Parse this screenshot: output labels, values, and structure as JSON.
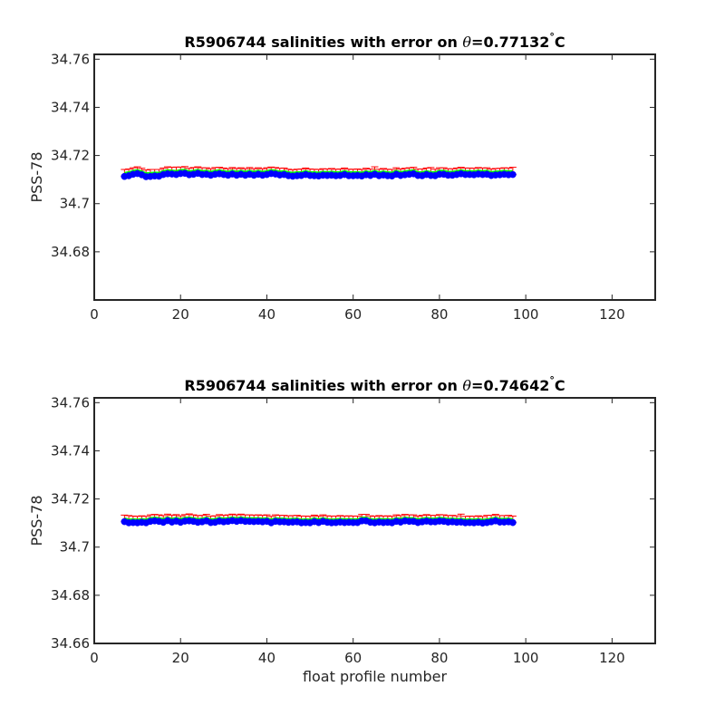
{
  "colors": {
    "background": "#ffffff",
    "axes": "#262626",
    "error_bar": "#ff0000",
    "uncorrected_line": "#00ff00",
    "corrected_points": "#0000ff"
  },
  "chart_data": [
    {
      "type": "scatter",
      "title_prefix": "R5906744 salinities with error on ",
      "title_theta": "θ",
      "title_suffix": "=0.77132",
      "title_degree": "°",
      "title_unit": "C",
      "xlabel": "",
      "ylabel": "PSS-78",
      "xlim": [
        0,
        130
      ],
      "ylim": [
        34.66,
        34.762
      ],
      "xticks": [
        0,
        20,
        40,
        60,
        80,
        100,
        120
      ],
      "xtick_labels": [
        "0",
        "20",
        "40",
        "60",
        "80",
        "100",
        "120"
      ],
      "yticks": [
        34.68,
        34.7,
        34.72,
        34.74,
        34.76
      ],
      "ytick_labels": [
        "34.68",
        "34.7",
        "34.72",
        "34.74",
        "34.76"
      ],
      "grid": false,
      "series": [
        {
          "x": [
            7,
            8,
            9,
            10,
            11,
            12,
            13,
            14,
            15,
            16,
            17,
            18,
            19,
            20,
            21,
            22,
            23,
            24,
            25,
            26,
            27,
            28,
            29,
            30,
            31,
            32,
            33,
            34,
            35,
            36,
            37,
            38,
            39,
            40,
            41,
            42,
            43,
            44,
            45,
            46,
            47,
            48,
            49,
            50,
            51,
            52,
            53,
            54,
            55,
            56,
            57,
            58,
            59,
            60,
            61,
            62,
            63,
            64,
            65,
            66,
            67,
            68,
            69,
            70,
            71,
            72,
            73,
            74,
            75,
            76,
            77,
            78,
            79,
            80,
            81,
            82,
            83,
            84,
            85,
            86,
            87,
            88,
            89,
            90,
            91,
            92,
            93,
            94,
            95,
            96,
            97
          ],
          "salinity": [
            34.7113,
            34.7116,
            34.7122,
            34.7125,
            34.712,
            34.7112,
            34.7113,
            34.7115,
            34.7114,
            34.7121,
            34.7124,
            34.7123,
            34.7121,
            34.7125,
            34.7126,
            34.712,
            34.7122,
            34.7126,
            34.7121,
            34.7122,
            34.7118,
            34.7122,
            34.7124,
            34.7121,
            34.7118,
            34.7123,
            34.7118,
            34.7122,
            34.7118,
            34.7122,
            34.7118,
            34.7122,
            34.7118,
            34.7121,
            34.7125,
            34.7123,
            34.7119,
            34.7121,
            34.7116,
            34.7114,
            34.7116,
            34.7117,
            34.7121,
            34.7117,
            34.7116,
            34.7115,
            34.7118,
            34.7117,
            34.7118,
            34.7116,
            34.7117,
            34.7121,
            34.7116,
            34.7116,
            34.7117,
            34.7115,
            34.712,
            34.7117,
            34.7122,
            34.7116,
            34.7119,
            34.7116,
            34.7115,
            34.7122,
            34.7117,
            34.712,
            34.7122,
            34.7124,
            34.7117,
            34.7116,
            34.7121,
            34.7117,
            34.7116,
            34.7122,
            34.7122,
            34.7118,
            34.7118,
            34.7121,
            34.7124,
            34.7121,
            34.7121,
            34.712,
            34.7123,
            34.7121,
            34.7122,
            34.7117,
            34.7119,
            34.712,
            34.7122,
            34.712,
            34.7121
          ],
          "uncorrected": [
            34.7128,
            34.7131,
            34.7137,
            34.714,
            34.7135,
            34.7127,
            34.7128,
            34.713,
            34.7129,
            34.7136,
            34.7139,
            34.7138,
            34.7136,
            34.714,
            34.7141,
            34.7135,
            34.7137,
            34.7141,
            34.7136,
            34.7137,
            34.7133,
            34.7137,
            34.7139,
            34.7136,
            34.7133,
            34.7138,
            34.7133,
            34.7137,
            34.7133,
            34.7137,
            34.7133,
            34.7137,
            34.7133,
            34.7136,
            34.714,
            34.7138,
            34.7134,
            34.7136,
            34.7131,
            34.7129,
            34.7131,
            34.7132,
            34.7136,
            34.7132,
            34.7131,
            34.713,
            34.7133,
            34.7132,
            34.7133,
            34.7131,
            34.7132,
            34.7136,
            34.7131,
            34.7131,
            34.7132,
            34.713,
            34.7135,
            34.7132,
            34.7137,
            34.7131,
            34.7134,
            34.7131,
            34.713,
            34.7137,
            34.7132,
            34.7135,
            34.7137,
            34.7139,
            34.7132,
            34.7131,
            34.7136,
            34.7132,
            34.7131,
            34.7137,
            34.7137,
            34.7133,
            34.7133,
            34.7136,
            34.7139,
            34.7136,
            34.7136,
            34.7135,
            34.7138,
            34.7136,
            34.7137,
            34.7132,
            34.7134,
            34.7135,
            34.7137,
            34.7135,
            34.7136
          ],
          "error": [
            0.0014,
            0.0013,
            0.0012,
            0.0013,
            0.0012,
            0.0013,
            0.0014,
            0.0012,
            0.0013,
            0.0012,
            0.0014,
            0.0013,
            0.0016,
            0.0012,
            0.0013,
            0.0012,
            0.0013,
            0.0012,
            0.0013,
            0.0012,
            0.0012,
            0.0013,
            0.0012,
            0.0012,
            0.0012,
            0.0012,
            0.0013,
            0.0012,
            0.0012,
            0.0013,
            0.0012,
            0.0012,
            0.0012,
            0.0013,
            0.0012,
            0.0012,
            0.0013,
            0.0012,
            0.0012,
            0.0012,
            0.0012,
            0.0012,
            0.0012,
            0.0012,
            0.0012,
            0.0012,
            0.0012,
            0.0012,
            0.0013,
            0.0012,
            0.0012,
            0.0012,
            0.0012,
            0.0012,
            0.0012,
            0.0012,
            0.0012,
            0.0012,
            0.0016,
            0.0012,
            0.0012,
            0.0012,
            0.0012,
            0.0012,
            0.0012,
            0.0012,
            0.0012,
            0.0012,
            0.0012,
            0.0013,
            0.0012,
            0.0018,
            0.0012,
            0.0012,
            0.0012,
            0.0012,
            0.0012,
            0.0012,
            0.0012,
            0.0012,
            0.0012,
            0.0012,
            0.0012,
            0.0012,
            0.0012,
            0.0012,
            0.0012,
            0.0012,
            0.0012,
            0.0013,
            0.0015
          ]
        }
      ]
    },
    {
      "type": "scatter",
      "title_prefix": "R5906744 salinities with error on ",
      "title_theta": "θ",
      "title_suffix": "=0.74642",
      "title_degree": "°",
      "title_unit": "C",
      "xlabel": "float profile number",
      "ylabel": "PSS-78",
      "xlim": [
        0,
        130
      ],
      "ylim": [
        34.66,
        34.762
      ],
      "xticks": [
        0,
        20,
        40,
        60,
        80,
        100,
        120
      ],
      "xtick_labels": [
        "0",
        "20",
        "40",
        "60",
        "80",
        "100",
        "120"
      ],
      "yticks": [
        34.66,
        34.68,
        34.7,
        34.72,
        34.74,
        34.76
      ],
      "ytick_labels": [
        "34.66",
        "34.68",
        "34.7",
        "34.72",
        "34.74",
        "34.76"
      ],
      "grid": false,
      "series": [
        {
          "x": [
            7,
            8,
            9,
            10,
            11,
            12,
            13,
            14,
            15,
            16,
            17,
            18,
            19,
            20,
            21,
            22,
            23,
            24,
            25,
            26,
            27,
            28,
            29,
            30,
            31,
            32,
            33,
            34,
            35,
            36,
            37,
            38,
            39,
            40,
            41,
            42,
            43,
            44,
            45,
            46,
            47,
            48,
            49,
            50,
            51,
            52,
            53,
            54,
            55,
            56,
            57,
            58,
            59,
            60,
            61,
            62,
            63,
            64,
            65,
            66,
            67,
            68,
            69,
            70,
            71,
            72,
            73,
            74,
            75,
            76,
            77,
            78,
            79,
            80,
            81,
            82,
            83,
            84,
            85,
            86,
            87,
            88,
            89,
            90,
            91,
            92,
            93,
            94,
            95,
            96,
            97
          ],
          "salinity": [
            34.7106,
            34.7101,
            34.7102,
            34.7101,
            34.7103,
            34.7101,
            34.7107,
            34.7109,
            34.7107,
            34.7103,
            34.711,
            34.7104,
            34.7108,
            34.7103,
            34.7108,
            34.7109,
            34.7107,
            34.7103,
            34.7105,
            34.7109,
            34.7102,
            34.7103,
            34.7108,
            34.7105,
            34.7107,
            34.711,
            34.7107,
            34.711,
            34.7107,
            34.7107,
            34.7106,
            34.7107,
            34.7105,
            34.7107,
            34.7101,
            34.7107,
            34.7105,
            34.7105,
            34.7103,
            34.7104,
            34.7105,
            34.7101,
            34.7102,
            34.7101,
            34.7106,
            34.7102,
            34.7107,
            34.7103,
            34.7101,
            34.7102,
            34.7104,
            34.7102,
            34.7103,
            34.7102,
            34.7102,
            34.7109,
            34.7109,
            34.7103,
            34.7101,
            34.7104,
            34.7102,
            34.7103,
            34.7101,
            34.7107,
            34.7104,
            34.7109,
            34.7107,
            34.7107,
            34.7102,
            34.7105,
            34.7108,
            34.7105,
            34.7105,
            34.7108,
            34.7107,
            34.7104,
            34.7105,
            34.7103,
            34.7104,
            34.7101,
            34.7102,
            34.7101,
            34.7103,
            34.71,
            34.7102,
            34.7105,
            34.7109,
            34.7104,
            34.7104,
            34.7105,
            34.7102
          ],
          "uncorrected": [
            34.712,
            34.7115,
            34.7116,
            34.7115,
            34.7117,
            34.7115,
            34.7121,
            34.7123,
            34.7121,
            34.7117,
            34.7124,
            34.7118,
            34.7122,
            34.7117,
            34.7122,
            34.7123,
            34.7121,
            34.7117,
            34.7119,
            34.7123,
            34.7116,
            34.7117,
            34.7122,
            34.7119,
            34.7121,
            34.7124,
            34.7121,
            34.7124,
            34.7121,
            34.7121,
            34.712,
            34.7121,
            34.7119,
            34.7121,
            34.7115,
            34.7121,
            34.7119,
            34.7119,
            34.7117,
            34.7118,
            34.7119,
            34.7115,
            34.7116,
            34.7115,
            34.712,
            34.7116,
            34.7121,
            34.7117,
            34.7115,
            34.7116,
            34.7118,
            34.7116,
            34.7117,
            34.7116,
            34.7116,
            34.7123,
            34.7123,
            34.7117,
            34.7115,
            34.7118,
            34.7116,
            34.7117,
            34.7115,
            34.7121,
            34.7118,
            34.7123,
            34.7121,
            34.7121,
            34.7116,
            34.7119,
            34.7122,
            34.7119,
            34.7119,
            34.7122,
            34.7121,
            34.7118,
            34.7119,
            34.7117,
            34.7118,
            34.7115,
            34.7116,
            34.7115,
            34.7117,
            34.7114,
            34.7116,
            34.7119,
            34.7123,
            34.7118,
            34.7118,
            34.7119,
            34.7116
          ],
          "error": [
            0.0013,
            0.0016,
            0.0013,
            0.0013,
            0.0013,
            0.0013,
            0.0013,
            0.0013,
            0.0013,
            0.0014,
            0.0013,
            0.0014,
            0.0013,
            0.0013,
            0.0013,
            0.0015,
            0.0013,
            0.0014,
            0.0013,
            0.0013,
            0.0013,
            0.0013,
            0.0013,
            0.0013,
            0.0013,
            0.0013,
            0.0013,
            0.0013,
            0.0013,
            0.0013,
            0.0013,
            0.0013,
            0.0013,
            0.0013,
            0.0013,
            0.0013,
            0.0013,
            0.0013,
            0.0013,
            0.0013,
            0.0013,
            0.0014,
            0.0013,
            0.0013,
            0.0013,
            0.0013,
            0.0013,
            0.0013,
            0.0014,
            0.0013,
            0.0013,
            0.0013,
            0.0013,
            0.0013,
            0.0013,
            0.0013,
            0.0013,
            0.0013,
            0.0013,
            0.0013,
            0.0013,
            0.0013,
            0.0013,
            0.0013,
            0.0013,
            0.0013,
            0.0013,
            0.0013,
            0.0013,
            0.0013,
            0.0013,
            0.0013,
            0.0013,
            0.0013,
            0.0013,
            0.0013,
            0.0013,
            0.0013,
            0.0019,
            0.0013,
            0.0013,
            0.0013,
            0.0013,
            0.0013,
            0.0016,
            0.0013,
            0.0013,
            0.0013,
            0.0013,
            0.0013,
            0.0013
          ]
        }
      ]
    }
  ]
}
